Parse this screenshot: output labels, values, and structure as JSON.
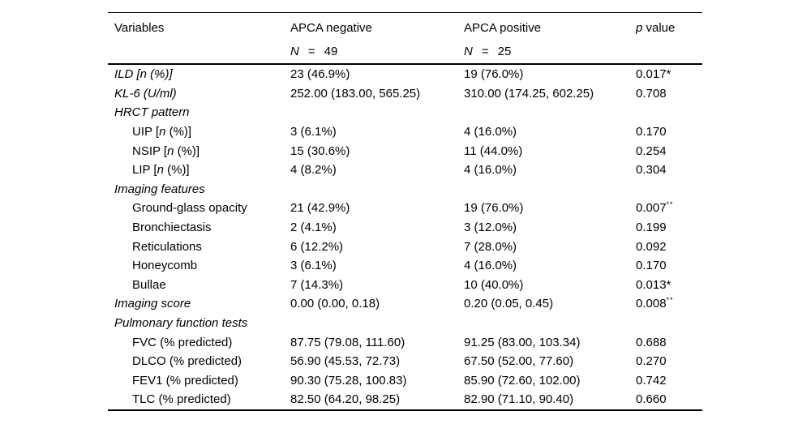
{
  "colors": {
    "background": "#ffffff",
    "text": "#000000",
    "rule": "#000000"
  },
  "table": {
    "header": {
      "variables": "Variables",
      "apca_negative": "APCA negative",
      "apca_positive": "APCA positive",
      "p_italic": "p",
      "p_rest": " value"
    },
    "subheader": {
      "n_label": "N",
      "eq": "=",
      "n_negative": "49",
      "n_positive": "25"
    },
    "rows": [
      {
        "label": [
          {
            "t": "ILD [n (%)]",
            "i": true
          }
        ],
        "indent": false,
        "neg": "23 (46.9%)",
        "pos": "19 (76.0%)",
        "p": "0.017*",
        "p_sup": ""
      },
      {
        "label": [
          {
            "t": "KL-6 (U/ml)",
            "i": true
          }
        ],
        "indent": false,
        "neg": "252.00 (183.00, 565.25)",
        "pos": "310.00 (174.25, 602.25)",
        "p": "0.708",
        "p_sup": ""
      },
      {
        "label": [
          {
            "t": "HRCT pattern",
            "i": true
          }
        ],
        "indent": false,
        "neg": "",
        "pos": "",
        "p": "",
        "p_sup": ""
      },
      {
        "label": [
          {
            "t": "UIP [",
            "i": false
          },
          {
            "t": "n",
            "i": true
          },
          {
            "t": " (%)]",
            "i": false
          }
        ],
        "indent": true,
        "neg": "3 (6.1%)",
        "pos": "4 (16.0%)",
        "p": "0.170",
        "p_sup": ""
      },
      {
        "label": [
          {
            "t": "NSIP [",
            "i": false
          },
          {
            "t": "n",
            "i": true
          },
          {
            "t": " (%)]",
            "i": false
          }
        ],
        "indent": true,
        "neg": "15 (30.6%)",
        "pos": "11 (44.0%)",
        "p": "0.254",
        "p_sup": ""
      },
      {
        "label": [
          {
            "t": "LIP [",
            "i": false
          },
          {
            "t": "n",
            "i": true
          },
          {
            "t": " (%)]",
            "i": false
          }
        ],
        "indent": true,
        "neg": "4 (8.2%)",
        "pos": "4 (16.0%)",
        "p": "0.304",
        "p_sup": ""
      },
      {
        "label": [
          {
            "t": "Imaging features",
            "i": true
          }
        ],
        "indent": false,
        "neg": "",
        "pos": "",
        "p": "",
        "p_sup": ""
      },
      {
        "label": [
          {
            "t": "Ground-glass opacity",
            "i": false
          }
        ],
        "indent": true,
        "neg": "21 (42.9%)",
        "pos": "19 (76.0%)",
        "p": "0.007",
        "p_sup": "**"
      },
      {
        "label": [
          {
            "t": "Bronchiectasis",
            "i": false
          }
        ],
        "indent": true,
        "neg": "2 (4.1%)",
        "pos": "3 (12.0%)",
        "p": "0.199",
        "p_sup": ""
      },
      {
        "label": [
          {
            "t": "Reticulations",
            "i": false
          }
        ],
        "indent": true,
        "neg": "6 (12.2%)",
        "pos": "7 (28.0%)",
        "p": "0.092",
        "p_sup": ""
      },
      {
        "label": [
          {
            "t": "Honeycomb",
            "i": false
          }
        ],
        "indent": true,
        "neg": "3 (6.1%)",
        "pos": "4 (16.0%)",
        "p": "0.170",
        "p_sup": ""
      },
      {
        "label": [
          {
            "t": "Bullae",
            "i": false
          }
        ],
        "indent": true,
        "neg": "7 (14.3%)",
        "pos": "10 (40.0%)",
        "p": "0.013*",
        "p_sup": ""
      },
      {
        "label": [
          {
            "t": "Imaging score",
            "i": true
          }
        ],
        "indent": false,
        "neg": "0.00 (0.00, 0.18)",
        "pos": "0.20 (0.05, 0.45)",
        "p": "0.008",
        "p_sup": "**"
      },
      {
        "label": [
          {
            "t": "Pulmonary function tests",
            "i": true
          }
        ],
        "indent": false,
        "neg": "",
        "pos": "",
        "p": "",
        "p_sup": ""
      },
      {
        "label": [
          {
            "t": "FVC (% predicted)",
            "i": false
          }
        ],
        "indent": true,
        "neg": "87.75 (79.08, 111.60)",
        "pos": "91.25 (83.00, 103.34)",
        "p": "0.688",
        "p_sup": ""
      },
      {
        "label": [
          {
            "t": "DLCO (% predicted)",
            "i": false
          }
        ],
        "indent": true,
        "neg": "56.90 (45.53, 72.73)",
        "pos": "67.50 (52.00, 77.60)",
        "p": "0.270",
        "p_sup": ""
      },
      {
        "label": [
          {
            "t": "FEV1 (% predicted)",
            "i": false
          }
        ],
        "indent": true,
        "neg": "90.30 (75.28, 100.83)",
        "pos": "85.90 (72.60, 102.00)",
        "p": "0.742",
        "p_sup": ""
      },
      {
        "label": [
          {
            "t": "TLC (% predicted)",
            "i": false
          }
        ],
        "indent": true,
        "neg": "82.50 (64.20, 98.25)",
        "pos": "82.90 (71.10, 90.40)",
        "p": "0.660",
        "p_sup": ""
      }
    ]
  }
}
